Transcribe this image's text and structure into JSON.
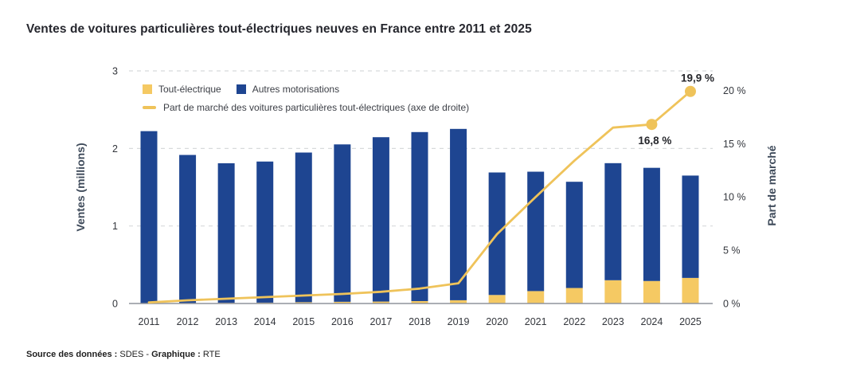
{
  "title": "Ventes de voitures particulières tout-électriques neuves en France entre 2011 et 2025",
  "legend": {
    "tout_electrique": "Tout-électrique",
    "autres_motorisations": "Autres motorisations",
    "part_de_marche": "Part de marché des voitures particulières tout-électriques (axe de droite)"
  },
  "source": {
    "data_label": "Source des données :",
    "data_value": " SDES - ",
    "graphique_label": "Graphique :",
    "graphique_value": " RTE"
  },
  "colors": {
    "bar_blue": "#1E4591",
    "bar_yellow": "#F5C963",
    "line_yellow": "#EFC35A",
    "grid": "#d8dadc",
    "baseline": "#8f939b",
    "tick_text": "#33363c",
    "annotation_text": "#25262b",
    "axis_title_text": "#3e4a5a"
  },
  "chart_data": {
    "type": "bar",
    "stacked": true,
    "grid": "horizontal-dashed",
    "title": "Ventes de voitures particulières tout-électriques neuves en France entre 2011 et 2025",
    "categories": [
      "2011",
      "2012",
      "2013",
      "2014",
      "2015",
      "2016",
      "2017",
      "2018",
      "2019",
      "2020",
      "2021",
      "2022",
      "2023",
      "2024",
      "2025"
    ],
    "series": [
      {
        "name": "Tout-électrique",
        "type": "bar",
        "axis": "left",
        "color": "#F5C963",
        "values": [
          0.003,
          0.006,
          0.009,
          0.011,
          0.017,
          0.022,
          0.025,
          0.031,
          0.042,
          0.11,
          0.16,
          0.2,
          0.3,
          0.29,
          0.33
        ]
      },
      {
        "name": "Autres motorisations",
        "type": "bar",
        "axis": "left",
        "color": "#1E4591",
        "values": [
          2.22,
          1.91,
          1.8,
          1.82,
          1.93,
          2.03,
          2.12,
          2.18,
          2.21,
          1.58,
          1.54,
          1.37,
          1.51,
          1.46,
          1.32
        ]
      },
      {
        "name": "Part de marché des voitures particulières tout-électriques (axe de droite)",
        "type": "line",
        "axis": "right",
        "color": "#EFC35A",
        "values": [
          0.1,
          0.3,
          0.45,
          0.6,
          0.75,
          0.9,
          1.1,
          1.4,
          1.9,
          6.5,
          10.0,
          13.4,
          16.5,
          16.8,
          19.9
        ]
      }
    ],
    "left_axis": {
      "label": "Ventes (millions)",
      "ticks": [
        "0",
        "1",
        "2",
        "3"
      ],
      "tick_values": [
        0,
        1,
        2,
        3
      ],
      "range": [
        0,
        3
      ]
    },
    "right_axis": {
      "label": "Part de marché",
      "ticks": [
        "0 %",
        "5 %",
        "10 %",
        "15 %",
        "20 %"
      ],
      "tick_values": [
        0,
        5,
        10,
        15,
        20
      ],
      "range": [
        0,
        20
      ]
    },
    "markers_on": [
      "2024",
      "2025"
    ],
    "annotations": [
      {
        "category": "2024",
        "text": "16,8 %",
        "position": "below"
      },
      {
        "category": "2025",
        "text": "19,9 %",
        "position": "above"
      }
    ]
  }
}
